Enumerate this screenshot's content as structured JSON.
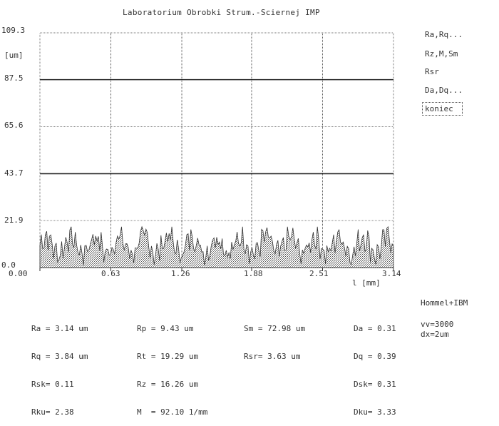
{
  "window": {
    "title": "Laboratorium Obrobki Strum.-Sciernej IMP"
  },
  "chart": {
    "y_ticks": [
      "109.3",
      "87.5",
      "65.6",
      "43.7",
      "21.9",
      "0.0"
    ],
    "y_values": [
      109.3,
      87.5,
      65.6,
      43.7,
      21.9,
      0.0
    ],
    "y_unit": "[um]",
    "x_ticks": [
      "0.00",
      "0.63",
      "1.26",
      "1.88",
      "2.51",
      "3.14"
    ],
    "x_values": [
      0.0,
      0.63,
      1.26,
      1.88,
      2.51,
      3.14
    ],
    "x_label": "l [mm]"
  },
  "chart_data": {
    "type": "area",
    "xlabel": "l [mm]",
    "ylabel": "[um]",
    "xlim": [
      0.0,
      3.14
    ],
    "ylim": [
      0.0,
      109.3
    ],
    "grid": true,
    "profile_amplitude_approx": [
      0,
      19
    ]
  },
  "menu": {
    "items": [
      {
        "label": "Ra,Rq...",
        "name": "menu-ra-rq",
        "selected": false
      },
      {
        "label": "Rz,M,Sm",
        "name": "menu-rz-m-sm",
        "selected": false
      },
      {
        "label": "Rsr",
        "name": "menu-rsr",
        "selected": false
      },
      {
        "label": "Da,Dq...",
        "name": "menu-da-dq",
        "selected": false
      },
      {
        "label": "koniec",
        "name": "menu-koniec",
        "selected": true
      }
    ]
  },
  "stats": {
    "col1": [
      "Ra = 3.14 um",
      "Rq = 3.84 um",
      "Rsk= 0.11",
      "Rku= 2.38"
    ],
    "col2": [
      "Rp = 9.43 um",
      "Rt = 19.29 um",
      "Rz = 16.26 um",
      "M  = 92.10 1/mm"
    ],
    "col3": [
      "Sm = 72.98 um",
      "Rsr= 3.63 um"
    ],
    "col4": [
      "Da = 0.31",
      "Dq = 0.39",
      "Dsk= 0.31",
      "Dku= 3.33"
    ],
    "col5": [
      "Hommel+IBM",
      "vv=3000",
      "dx=2um"
    ]
  }
}
